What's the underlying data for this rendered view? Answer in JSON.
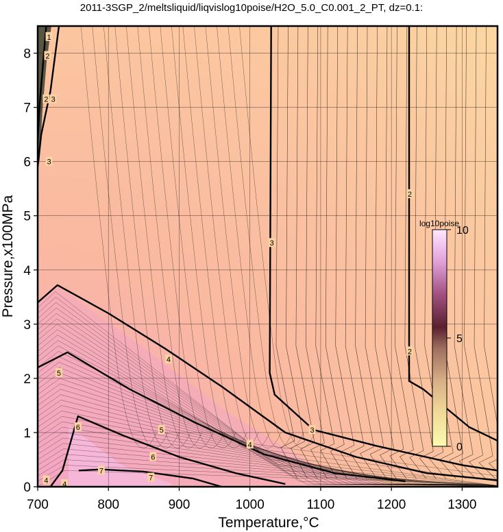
{
  "chart_data": {
    "type": "heatmap",
    "title": "2011-3SGP_2/meltsliquid/liqvislog10poise/H2O_5.0_C0.001_2_PT, dz=0.1:",
    "xlabel": "Temperature,°C",
    "ylabel": "Pressure,x100MPa",
    "xlim": [
      700,
      1350
    ],
    "ylim": [
      0,
      8.5
    ],
    "x_ticks": [
      "700",
      "800",
      "900",
      "1000",
      "1100",
      "1200",
      "1300"
    ],
    "y_ticks": [
      "0",
      "1",
      "2",
      "3",
      "4",
      "5",
      "6",
      "7",
      "8"
    ],
    "grid": true,
    "colorbar": {
      "label": "log10poise",
      "range": [
        0,
        10
      ],
      "ticks": [
        "0",
        "5",
        "10"
      ],
      "placement": "right-inside",
      "colors": [
        "#fbfbb0",
        "#f0dc98",
        "#d8b088",
        "#a07060",
        "#5a2030",
        "#a05080",
        "#e0a0d8",
        "#ffe8ff"
      ]
    },
    "background_colors": {
      "high_T": "#fbd9a3",
      "mid": "#fab8a1",
      "low_T_high_P": "#484838",
      "low_T_low_P": "#f2a6c3"
    },
    "contour_levels_major": [
      {
        "level": "2",
        "points": [
          [
            1225,
            8.5
          ],
          [
            1225,
            1.95
          ],
          [
            1245,
            1.8
          ],
          [
            1310,
            1.1
          ],
          [
            1350,
            0.85
          ]
        ]
      },
      {
        "level": "3",
        "points": [
          [
            1030,
            8.5
          ],
          [
            1028,
            2.1
          ],
          [
            1035,
            1.7
          ],
          [
            1090,
            1.05
          ],
          [
            1180,
            0.75
          ],
          [
            1300,
            0.4
          ],
          [
            1350,
            0.3
          ]
        ]
      },
      {
        "level": "4",
        "points": [
          [
            700,
            3.4
          ],
          [
            728,
            3.72
          ],
          [
            800,
            3.2
          ],
          [
            880,
            2.55
          ],
          [
            960,
            1.85
          ],
          [
            1050,
            1.0
          ],
          [
            1150,
            0.55
          ],
          [
            1250,
            0.25
          ],
          [
            1350,
            0.12
          ]
        ]
      },
      {
        "level": "5",
        "points": [
          [
            700,
            2.2
          ],
          [
            742,
            2.48
          ],
          [
            830,
            1.8
          ],
          [
            920,
            1.2
          ],
          [
            1020,
            0.6
          ],
          [
            1120,
            0.25
          ],
          [
            1220,
            0.1
          ]
        ]
      },
      {
        "level": "6",
        "points": [
          [
            718,
            0.0
          ],
          [
            735,
            0.3
          ],
          [
            757,
            1.3
          ],
          [
            820,
            0.95
          ],
          [
            900,
            0.55
          ],
          [
            980,
            0.25
          ],
          [
            1050,
            0.05
          ]
        ]
      },
      {
        "level": "7",
        "points": [
          [
            758,
            0.3
          ],
          [
            790,
            0.32
          ],
          [
            850,
            0.28
          ],
          [
            920,
            0.15
          ],
          [
            960,
            0.0
          ]
        ]
      },
      {
        "level": "3",
        "points": [
          [
            700,
            5.9
          ],
          [
            705,
            6.5
          ],
          [
            718,
            7.3
          ],
          [
            730,
            8.5
          ]
        ]
      },
      {
        "level": "2",
        "points": [
          [
            700,
            6.4
          ],
          [
            703,
            7.1
          ],
          [
            712,
            8.5
          ]
        ]
      }
    ],
    "contour_labels": [
      {
        "text": "2",
        "x": 1226,
        "y": 5.4
      },
      {
        "text": "2",
        "x": 1226,
        "y": 2.5
      },
      {
        "text": "3",
        "x": 1031,
        "y": 4.5
      },
      {
        "text": "3",
        "x": 1088,
        "y": 1.05
      },
      {
        "text": "4",
        "x": 885,
        "y": 2.35
      },
      {
        "text": "4",
        "x": 1000,
        "y": 0.78
      },
      {
        "text": "5",
        "x": 730,
        "y": 2.1
      },
      {
        "text": "5",
        "x": 875,
        "y": 1.05
      },
      {
        "text": "6",
        "x": 757,
        "y": 1.1
      },
      {
        "text": "6",
        "x": 863,
        "y": 0.55
      },
      {
        "text": "7",
        "x": 790,
        "y": 0.3
      },
      {
        "text": "7",
        "x": 860,
        "y": 0.17
      },
      {
        "text": "3",
        "x": 716,
        "y": 6.0
      },
      {
        "text": "3",
        "x": 722,
        "y": 7.15
      },
      {
        "text": "2",
        "x": 712,
        "y": 7.15
      },
      {
        "text": "2",
        "x": 714,
        "y": 7.95
      },
      {
        "text": "1",
        "x": 716,
        "y": 8.3
      },
      {
        "text": "4",
        "x": 712,
        "y": 0.12
      },
      {
        "text": "4",
        "x": 738,
        "y": 0.05
      }
    ]
  }
}
